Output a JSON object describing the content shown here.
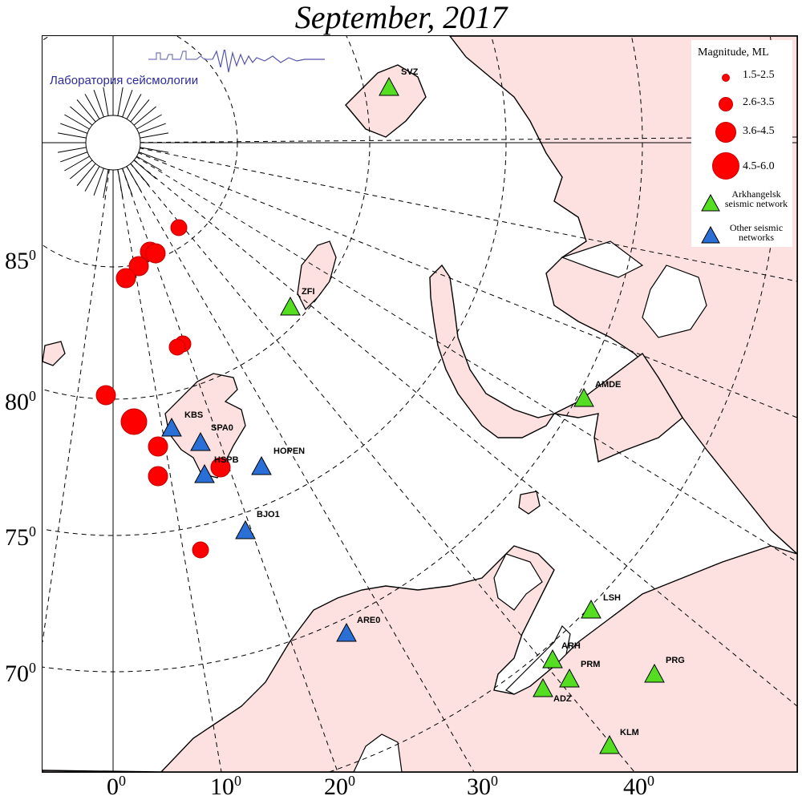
{
  "title": "September, 2017",
  "lab_name": "Лаборатория сейсмологии",
  "colors": {
    "land": "#fde0e0",
    "coast": "#000000",
    "event": "#ff0000",
    "arkhangelsk_station": "#55dd22",
    "other_station": "#2a6fd6"
  },
  "latitude_labels": [
    {
      "text": "85",
      "deg": "0"
    },
    {
      "text": "80",
      "deg": "0"
    },
    {
      "text": "75",
      "deg": "0"
    },
    {
      "text": "70",
      "deg": "0"
    }
  ],
  "longitude_labels": [
    {
      "text": "0",
      "deg": "0"
    },
    {
      "text": "10",
      "deg": "0"
    },
    {
      "text": "20",
      "deg": "0"
    },
    {
      "text": "30",
      "deg": "0"
    },
    {
      "text": "40",
      "deg": "0"
    }
  ],
  "legend": {
    "title": "Magnitude, ML",
    "magnitude_classes": [
      {
        "label": "1.5-2.5",
        "size": "small"
      },
      {
        "label": "2.6-3.5",
        "size": "medium"
      },
      {
        "label": "3.6-4.5",
        "size": "large"
      },
      {
        "label": "4.5-6.0",
        "size": "xlarge"
      }
    ],
    "arkhangelsk_network": "Arkhangelsk seismic network",
    "other_networks": "Other seismic networks"
  },
  "stations": [
    {
      "code": "SVZ",
      "network": "arkhangelsk"
    },
    {
      "code": "ZFI",
      "network": "arkhangelsk"
    },
    {
      "code": "AMDE",
      "network": "arkhangelsk"
    },
    {
      "code": "LSH",
      "network": "arkhangelsk"
    },
    {
      "code": "ARH",
      "network": "arkhangelsk"
    },
    {
      "code": "PRM",
      "network": "arkhangelsk"
    },
    {
      "code": "PRG",
      "network": "arkhangelsk"
    },
    {
      "code": "ADZ",
      "network": "arkhangelsk"
    },
    {
      "code": "KLM",
      "network": "arkhangelsk"
    },
    {
      "code": "KBS",
      "network": "other"
    },
    {
      "code": "SPA0",
      "network": "other"
    },
    {
      "code": "HSPB",
      "network": "other"
    },
    {
      "code": "HOPEN",
      "network": "other"
    },
    {
      "code": "BJO1",
      "network": "other"
    },
    {
      "code": "ARE0",
      "network": "other"
    }
  ],
  "events": [
    {
      "size": "medium"
    },
    {
      "size": "large"
    },
    {
      "size": "large"
    },
    {
      "size": "large"
    },
    {
      "size": "large"
    },
    {
      "size": "medium"
    },
    {
      "size": "medium"
    },
    {
      "size": "large"
    },
    {
      "size": "xlarge"
    },
    {
      "size": "large"
    },
    {
      "size": "large"
    },
    {
      "size": "large"
    },
    {
      "size": "medium"
    }
  ]
}
